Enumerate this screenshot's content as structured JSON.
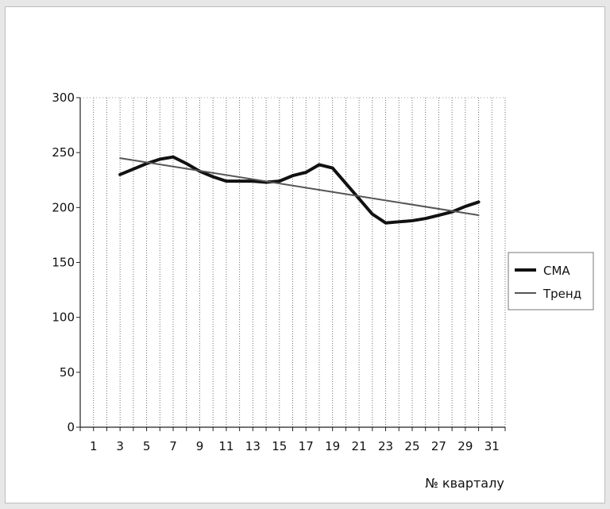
{
  "chart_data": {
    "type": "line",
    "title": "",
    "xlabel": "№ кварталу",
    "ylabel": "",
    "ylim": [
      0,
      300
    ],
    "yticks": [
      0,
      50,
      100,
      150,
      200,
      250,
      300
    ],
    "xlim": [
      0,
      32
    ],
    "xticks": [
      "1",
      "3",
      "5",
      "7",
      "9",
      "11",
      "13",
      "15",
      "17",
      "19",
      "21",
      "23",
      "25",
      "27",
      "29",
      "31"
    ],
    "grid": "vertical dotted lines",
    "legend_position": "right",
    "series": [
      {
        "name": "СМА",
        "color": "#111111",
        "style": "thick solid",
        "x": [
          3,
          4,
          5,
          6,
          7,
          8,
          9,
          10,
          11,
          12,
          13,
          14,
          15,
          16,
          17,
          18,
          19,
          20,
          21,
          22,
          23,
          24,
          25,
          26,
          27,
          28,
          29,
          30
        ],
        "y": [
          230,
          235,
          240,
          244,
          246,
          240,
          233,
          228,
          224,
          224,
          224,
          223,
          224,
          229,
          232,
          239,
          236,
          222,
          208,
          194,
          186,
          187,
          188,
          190,
          193,
          196,
          201,
          205
        ]
      },
      {
        "name": "Тренд",
        "color": "#555555",
        "style": "thin solid",
        "x": [
          3,
          30
        ],
        "y": [
          245,
          193
        ]
      }
    ]
  }
}
